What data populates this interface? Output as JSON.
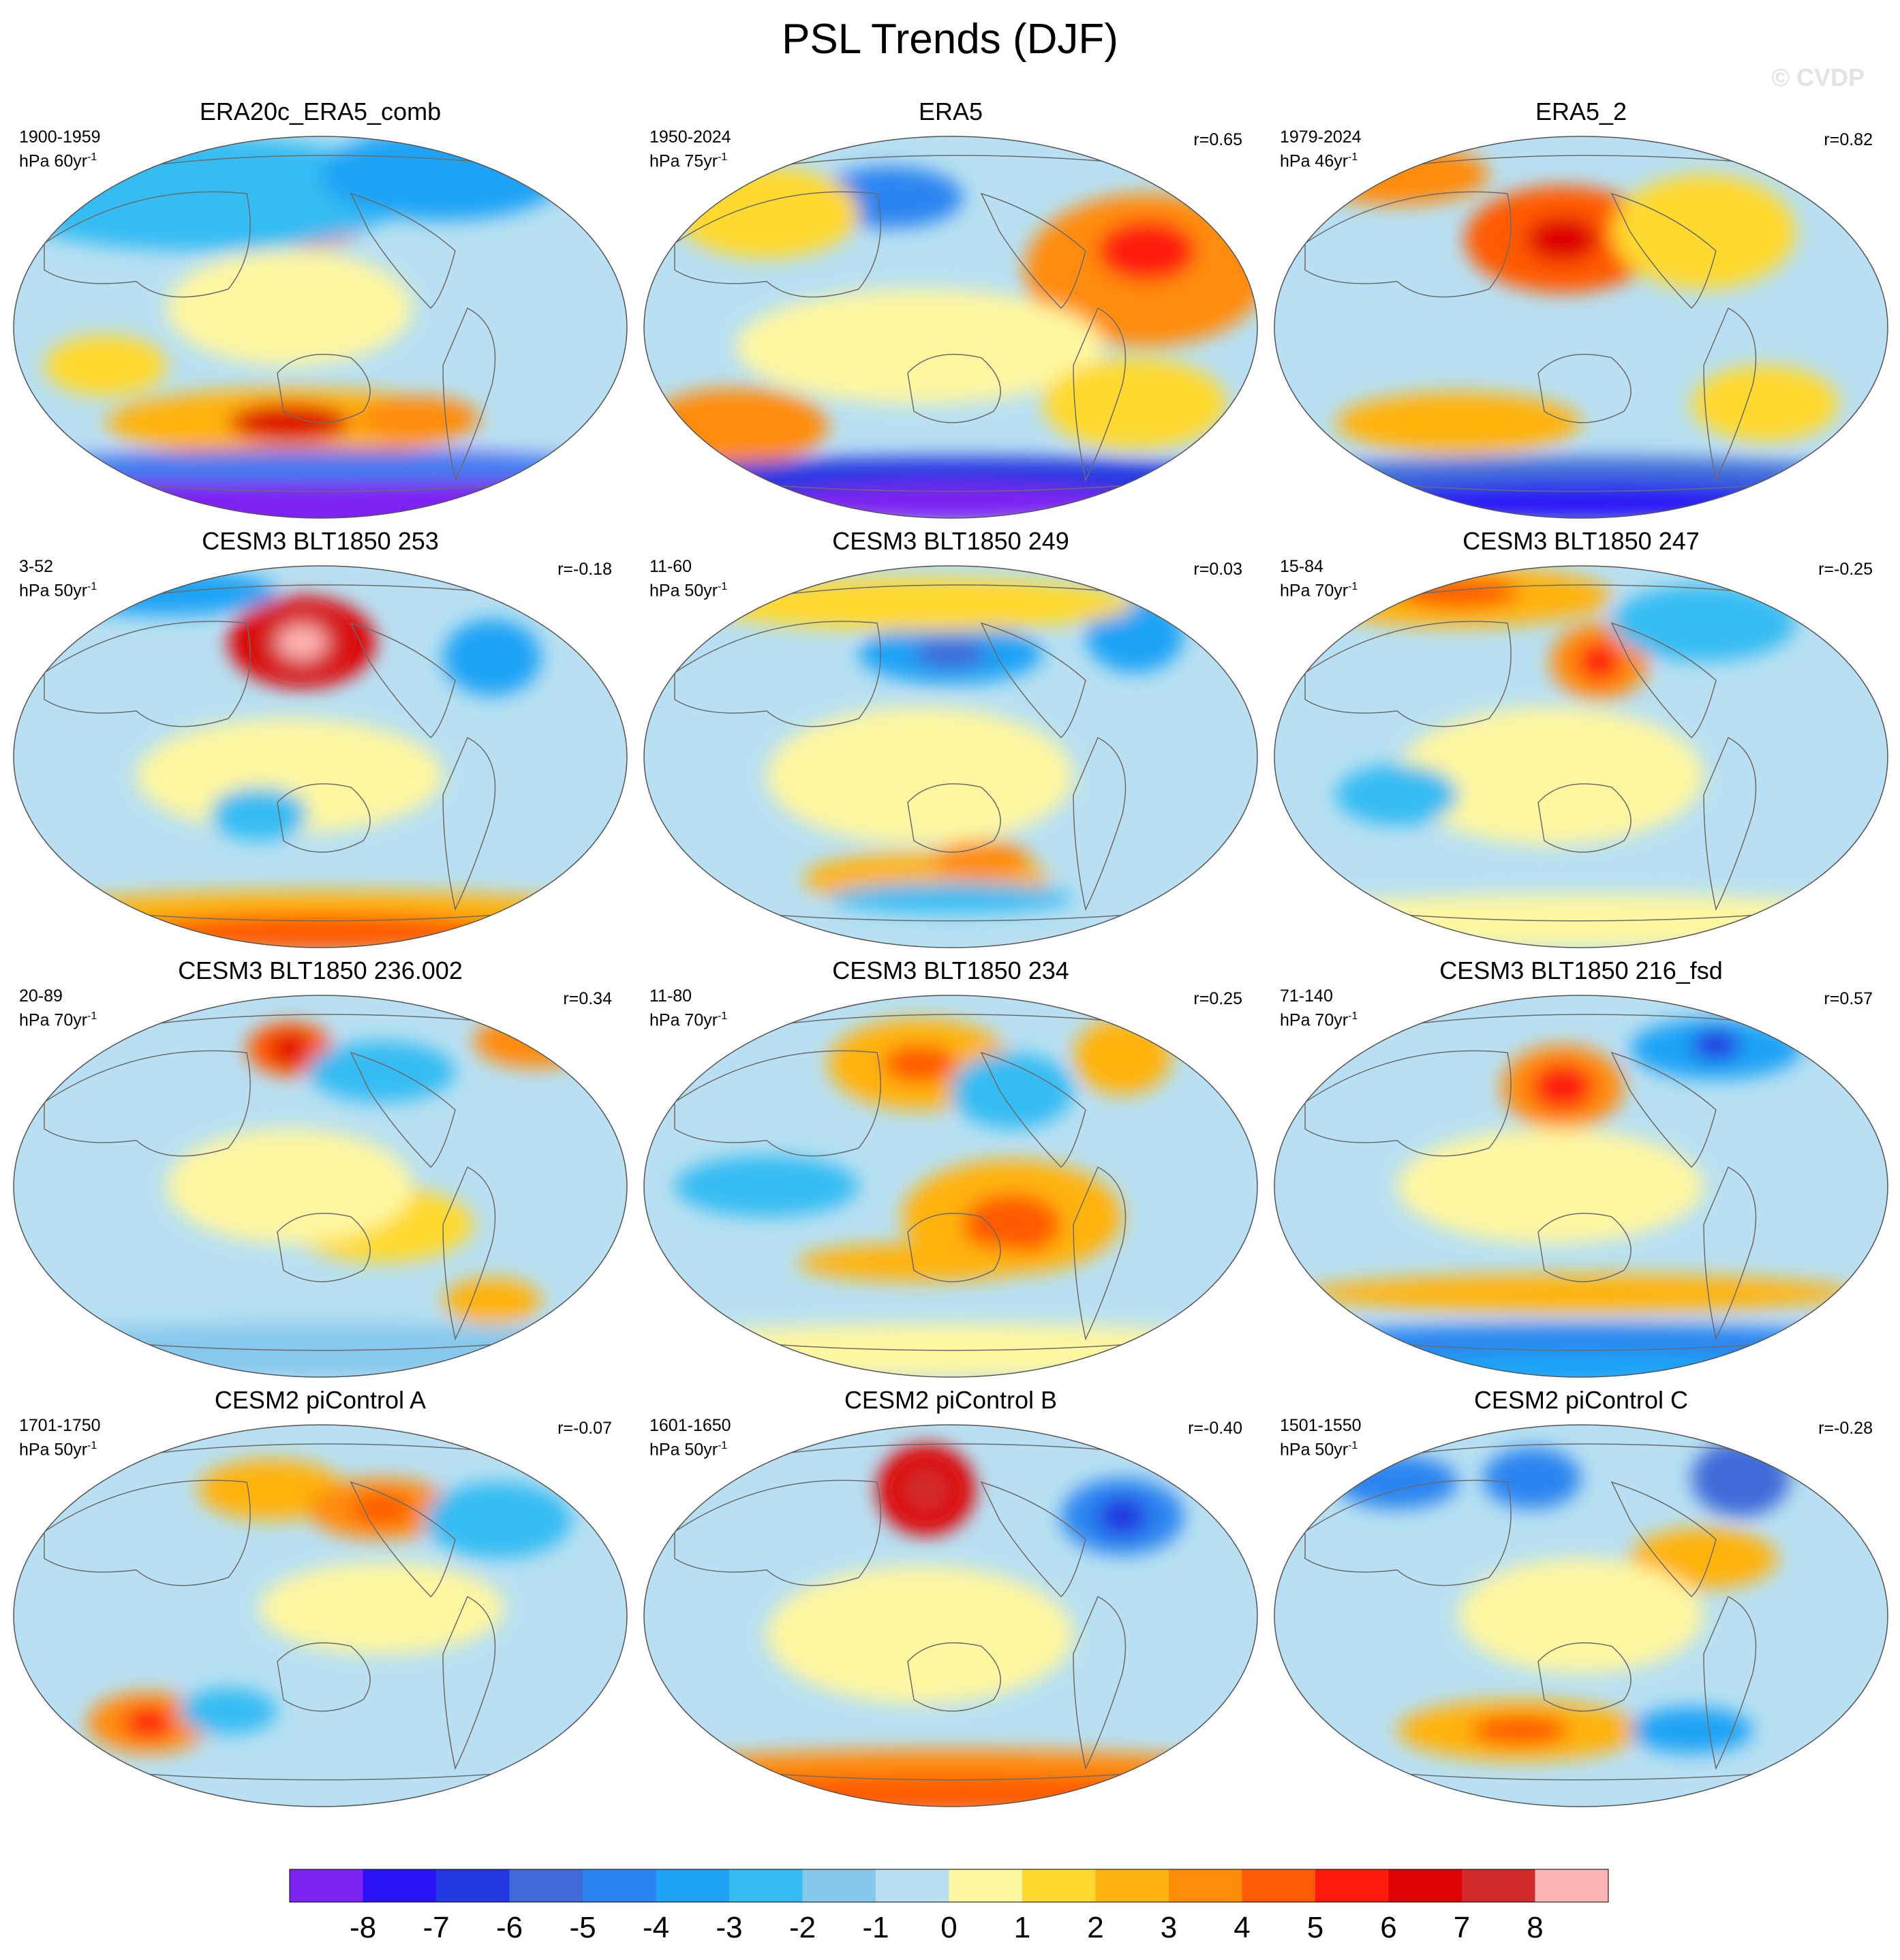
{
  "title": "PSL Trends (DJF)",
  "watermark": "© CVDP",
  "chart_data": {
    "type": "heatmap",
    "variable": "PSL",
    "season": "DJF",
    "projection": "Robinson (global map)",
    "colorbar": {
      "tick_labels": [
        "-8",
        "-7",
        "-6",
        "-5",
        "-4",
        "-3",
        "-2",
        "-1",
        "0",
        "1",
        "2",
        "3",
        "4",
        "5",
        "6",
        "7",
        "8"
      ],
      "colors": [
        "#7d24f0",
        "#2a12f5",
        "#2438e0",
        "#3f6ad8",
        "#2b84f0",
        "#1ea3f5",
        "#34bcf2",
        "#86c8ec",
        "#b8e0f2",
        "#fff7a0",
        "#ffd92f",
        "#ffb30f",
        "#ff8c08",
        "#ff5a05",
        "#ff1a0a",
        "#dd0303",
        "#d12a2a",
        "#ffb4b4"
      ]
    },
    "panels": [
      {
        "title": "ERA20c_ERA5_comb",
        "period": "1900-1959",
        "units": "hPa 60yr",
        "correlation": ""
      },
      {
        "title": "ERA5",
        "period": "1950-2024",
        "units": "hPa 75yr",
        "correlation": "r=0.65"
      },
      {
        "title": "ERA5_2",
        "period": "1979-2024",
        "units": "hPa 46yr",
        "correlation": "r=0.82"
      },
      {
        "title": "CESM3 BLT1850 253",
        "period": "3-52",
        "units": "hPa 50yr",
        "correlation": "r=-0.18"
      },
      {
        "title": "CESM3 BLT1850 249",
        "period": "11-60",
        "units": "hPa 50yr",
        "correlation": "r=0.03"
      },
      {
        "title": "CESM3 BLT1850 247",
        "period": "15-84",
        "units": "hPa 70yr",
        "correlation": "r=-0.25"
      },
      {
        "title": "CESM3 BLT1850 236.002",
        "period": "20-89",
        "units": "hPa 70yr",
        "correlation": "r=0.34"
      },
      {
        "title": "CESM3 BLT1850 234",
        "period": "11-80",
        "units": "hPa 70yr",
        "correlation": "r=0.25"
      },
      {
        "title": "CESM3 BLT1850 216_fsd",
        "period": "71-140",
        "units": "hPa 70yr",
        "correlation": "r=0.57"
      },
      {
        "title": "CESM2 piControl A",
        "period": "1701-1750",
        "units": "hPa 50yr",
        "correlation": "r=-0.07"
      },
      {
        "title": "CESM2 piControl B",
        "period": "1601-1650",
        "units": "hPa 50yr",
        "correlation": "r=-0.40"
      },
      {
        "title": "CESM2 piControl C",
        "period": "1501-1550",
        "units": "hPa 50yr",
        "correlation": "r=-0.28"
      }
    ]
  }
}
